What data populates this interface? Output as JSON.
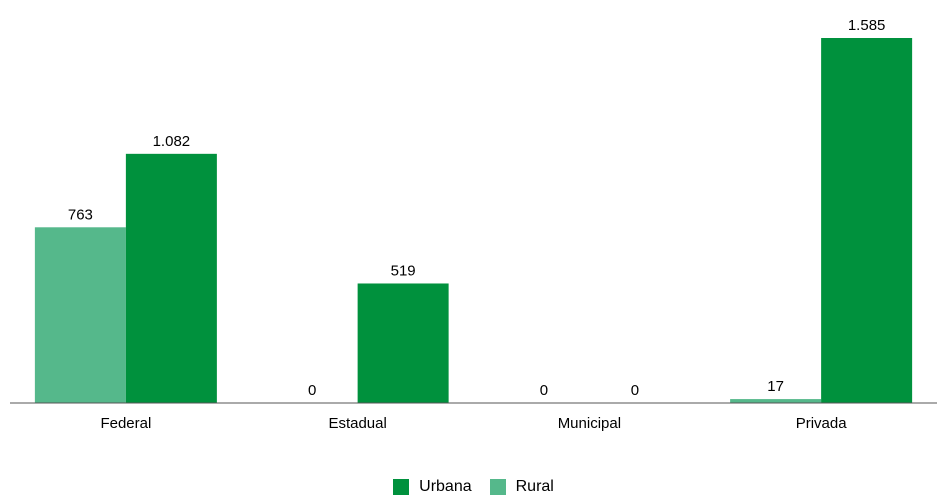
{
  "chart_data": {
    "type": "bar",
    "categories": [
      "Federal",
      "Estadual",
      "Municipal",
      "Privada"
    ],
    "series": [
      {
        "name": "Rural",
        "values": [
          763,
          0,
          0,
          17
        ],
        "value_labels": [
          "763",
          "0",
          "0",
          "17"
        ],
        "color": "#55b88b"
      },
      {
        "name": "Urbana",
        "values": [
          1082,
          519,
          0,
          1585
        ],
        "value_labels": [
          "1.082",
          "519",
          "0",
          "1.585"
        ],
        "color": "#00913d"
      }
    ],
    "legend": {
      "order": [
        "Urbana",
        "Rural"
      ],
      "placement": "bottom"
    },
    "ylim": [
      0,
      1600
    ],
    "grid": false
  }
}
